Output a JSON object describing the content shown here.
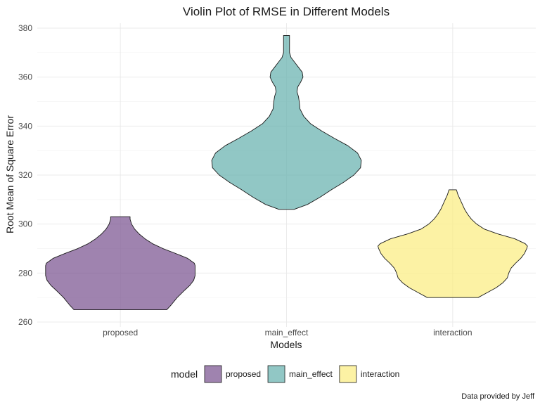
{
  "chart_data": {
    "type": "violin",
    "title": "Violin Plot of RMSE in Different Models",
    "xlabel": "Models",
    "ylabel": "Root Mean of Square Error",
    "caption": "Data provided by Jeff",
    "ylim": [
      258,
      382
    ],
    "yticks": [
      260,
      280,
      300,
      320,
      340,
      360,
      380
    ],
    "grid": true,
    "legend": {
      "title": "model",
      "position": "bottom"
    },
    "categories": [
      "proposed",
      "main_effect",
      "interaction"
    ],
    "series": [
      {
        "name": "proposed",
        "color": "#7f5994",
        "profile": [
          [
            265,
            0.62
          ],
          [
            267,
            0.68
          ],
          [
            270,
            0.76
          ],
          [
            273,
            0.86
          ],
          [
            275,
            0.93
          ],
          [
            277,
            0.98
          ],
          [
            279,
            1.0
          ],
          [
            281,
            1.0
          ],
          [
            283,
            1.0
          ],
          [
            284,
            0.99
          ],
          [
            286,
            0.9
          ],
          [
            288,
            0.74
          ],
          [
            290,
            0.57
          ],
          [
            292,
            0.43
          ],
          [
            294,
            0.33
          ],
          [
            296,
            0.25
          ],
          [
            298,
            0.19
          ],
          [
            300,
            0.15
          ],
          [
            302,
            0.13
          ],
          [
            303,
            0.13
          ]
        ]
      },
      {
        "name": "main_effect",
        "color": "#6cb4b2",
        "profile": [
          [
            306,
            0.1
          ],
          [
            308,
            0.28
          ],
          [
            311,
            0.45
          ],
          [
            314,
            0.6
          ],
          [
            317,
            0.76
          ],
          [
            320,
            0.9
          ],
          [
            323,
            0.99
          ],
          [
            326,
            1.0
          ],
          [
            329,
            0.95
          ],
          [
            332,
            0.82
          ],
          [
            335,
            0.64
          ],
          [
            338,
            0.47
          ],
          [
            341,
            0.32
          ],
          [
            344,
            0.23
          ],
          [
            347,
            0.18
          ],
          [
            350,
            0.17
          ],
          [
            352,
            0.16
          ],
          [
            354,
            0.14
          ],
          [
            356,
            0.15
          ],
          [
            358,
            0.19
          ],
          [
            360,
            0.22
          ],
          [
            362,
            0.21
          ],
          [
            364,
            0.16
          ],
          [
            366,
            0.11
          ],
          [
            368,
            0.06
          ],
          [
            370,
            0.04
          ],
          [
            372,
            0.04
          ],
          [
            375,
            0.04
          ],
          [
            377,
            0.04
          ]
        ]
      },
      {
        "name": "interaction",
        "color": "#fbee85",
        "profile": [
          [
            270,
            0.34
          ],
          [
            272,
            0.46
          ],
          [
            274,
            0.58
          ],
          [
            276,
            0.67
          ],
          [
            278,
            0.73
          ],
          [
            280,
            0.75
          ],
          [
            282,
            0.78
          ],
          [
            284,
            0.84
          ],
          [
            286,
            0.91
          ],
          [
            288,
            0.96
          ],
          [
            290,
            0.99
          ],
          [
            291,
            1.0
          ],
          [
            292,
            0.97
          ],
          [
            294,
            0.83
          ],
          [
            296,
            0.6
          ],
          [
            298,
            0.42
          ],
          [
            300,
            0.32
          ],
          [
            302,
            0.25
          ],
          [
            304,
            0.2
          ],
          [
            306,
            0.16
          ],
          [
            308,
            0.13
          ],
          [
            310,
            0.1
          ],
          [
            312,
            0.07
          ],
          [
            314,
            0.05
          ]
        ]
      }
    ]
  }
}
